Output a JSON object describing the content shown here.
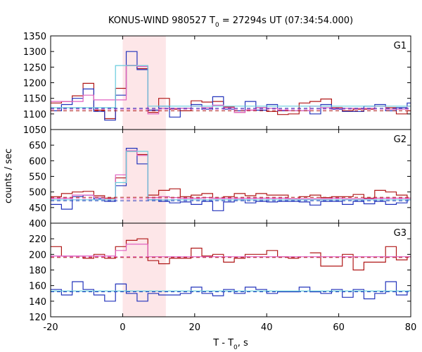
{
  "chart_data": {
    "type": "line",
    "title": "KONUS-WIND 980527 T0 = 27294s UT (07:34:54.000)",
    "title_parts": {
      "pre": "KONUS-WIND 980527 T",
      "sub": "0",
      "post": " = 27294s UT (07:34:54.000)"
    },
    "xlabel_parts": {
      "pre": "T - T",
      "sub": "0",
      "post": ", s"
    },
    "ylabel": "counts / sec",
    "xlim": [
      -20,
      80
    ],
    "xticks": [
      -20,
      0,
      20,
      40,
      60,
      80
    ],
    "grid": false,
    "highlight_interval": [
      0,
      12
    ],
    "colors": {
      "red": "#b01818",
      "blue": "#2233bb",
      "pink": "#e060c0",
      "cyan": "#66ccdd",
      "highlight": "#fde6e8"
    },
    "panels": [
      {
        "label": "G1",
        "ylim": [
          1050,
          1350
        ],
        "yticks": [
          1050,
          1100,
          1150,
          1200,
          1250,
          1300,
          1350
        ],
        "series": [
          {
            "color_key": "red",
            "bin_width": 3,
            "start": -20,
            "end": 81,
            "gap": [
              null,
              null
            ],
            "values": [
              1135,
              1140,
              1158,
              1198,
              1112,
              1085,
              1182,
              1255,
              1245,
              1105,
              1150,
              1115,
              1110,
              1142,
              1138,
              1140,
              1122,
              1105,
              1112,
              1120,
              1108,
              1098,
              1100,
              1135,
              1140,
              1148,
              1120,
              1110,
              1115,
              1115,
              1125,
              1120,
              1100,
              1110
            ]
          },
          {
            "color_key": "blue",
            "bin_width": 3,
            "start": -20,
            "end": 81,
            "gap": [
              null,
              null
            ],
            "values": [
              1110,
              1130,
              1150,
              1180,
              1108,
              1080,
              1160,
              1300,
              1242,
              1112,
              1125,
              1090,
              1118,
              1130,
              1115,
              1155,
              1115,
              1110,
              1140,
              1112,
              1130,
              1110,
              1110,
              1110,
              1100,
              1130,
              1115,
              1108,
              1108,
              1125,
              1130,
              1110,
              1120,
              1135
            ]
          },
          {
            "color_key": "pink",
            "bin_width": 3,
            "start": -20,
            "end": 81,
            "gap": [
              null,
              null
            ],
            "values": [
              1140,
              1140,
              1140,
              1160,
              1145,
              1145,
              1145,
              1256,
              1252,
              1100,
              1118,
              1118,
              1118,
              1125,
              1120,
              1128,
              1120,
              1105,
              1112,
              1120,
              1118,
              1112,
              1110,
              1110,
              1125,
              1120,
              1118,
              1118,
              1118,
              1118,
              1125,
              1115,
              1115,
              1125
            ]
          },
          {
            "color_key": "cyan",
            "bin_width": 3,
            "start": -20,
            "end": 81,
            "gap": [
              null,
              null
            ],
            "values": [
              1120,
              1120,
              1120,
              1120,
              1120,
              1120,
              1255,
              1255,
              1255,
              1125,
              1125,
              1125,
              1125,
              1125,
              1125,
              1125,
              1125,
              1125,
              1125,
              1125,
              1125,
              1125,
              1125,
              1125,
              1125,
              1125,
              1125,
              1125,
              1125,
              1125,
              1125,
              1125,
              1125,
              1125
            ]
          }
        ],
        "fits": [
          {
            "color_key": "red",
            "value": 1110
          },
          {
            "color_key": "blue",
            "value": 1118
          },
          {
            "color_key": "pink",
            "value": 1115
          }
        ]
      },
      {
        "label": "G2",
        "ylim": [
          400,
          700
        ],
        "yticks": [
          400,
          450,
          500,
          550,
          600,
          650
        ],
        "series": [
          {
            "color_key": "red",
            "bin_width": 3,
            "start": -20,
            "end": 81,
            "gap": [
              null,
              null
            ],
            "values": [
              485,
              495,
              500,
              502,
              488,
              480,
              545,
              630,
              620,
              490,
              505,
              510,
              485,
              490,
              495,
              480,
              485,
              495,
              488,
              495,
              490,
              490,
              478,
              485,
              490,
              482,
              485,
              485,
              492,
              480,
              505,
              500,
              490,
              480
            ]
          },
          {
            "color_key": "blue",
            "bin_width": 3,
            "start": -20,
            "end": 81,
            "gap": [
              null,
              null
            ],
            "values": [
              460,
              445,
              485,
              490,
              478,
              470,
              520,
              640,
              590,
              475,
              470,
              465,
              468,
              460,
              470,
              440,
              468,
              475,
              465,
              470,
              468,
              470,
              470,
              468,
              458,
              470,
              470,
              460,
              470,
              462,
              470,
              460,
              465,
              475
            ]
          },
          {
            "color_key": "pink",
            "bin_width": 3,
            "start": -20,
            "end": 81,
            "gap": [
              null,
              null
            ],
            "values": [
              480,
              480,
              490,
              490,
              483,
              475,
              555,
              632,
              617,
              482,
              485,
              482,
              480,
              480,
              482,
              480,
              480,
              480,
              480,
              480,
              480,
              480,
              478,
              478,
              478,
              478,
              480,
              478,
              478,
              478,
              480,
              480,
              480,
              480
            ]
          },
          {
            "color_key": "cyan",
            "bin_width": 3,
            "start": -20,
            "end": 81,
            "gap": [
              null,
              null
            ],
            "values": [
              475,
              475,
              475,
              475,
              475,
              475,
              530,
              630,
              630,
              475,
              475,
              475,
              475,
              475,
              475,
              475,
              475,
              475,
              475,
              475,
              475,
              475,
              475,
              475,
              475,
              475,
              475,
              475,
              475,
              475,
              475,
              475,
              475,
              475
            ]
          }
        ],
        "fits": [
          {
            "color_key": "red",
            "value": 483
          },
          {
            "color_key": "blue",
            "value": 472
          },
          {
            "color_key": "pink",
            "value": 478
          }
        ]
      },
      {
        "label": "G3",
        "ylim": [
          120,
          240
        ],
        "yticks": [
          120,
          140,
          160,
          180,
          200,
          220
        ],
        "series": [
          {
            "color_key": "red",
            "bin_width": 3,
            "start": -20,
            "end": 81,
            "gap": [
              47,
              50
            ],
            "values": [
              210,
              198,
              198,
              195,
              200,
              195,
              210,
              218,
              220,
              192,
              188,
              195,
              195,
              208,
              198,
              200,
              190,
              195,
              200,
              200,
              205,
              197,
              195,
              210,
              202,
              185,
              185,
              200,
              180,
              190,
              190,
              210,
              193,
              197
            ]
          },
          {
            "color_key": "blue",
            "bin_width": 3,
            "start": -20,
            "end": 81,
            "gap": [
              null,
              null
            ],
            "values": [
              155,
              148,
              165,
              155,
              148,
              140,
              162,
              150,
              140,
              150,
              148,
              148,
              150,
              158,
              150,
              147,
              155,
              150,
              158,
              155,
              150,
              152,
              152,
              158,
              152,
              150,
              155,
              145,
              155,
              143,
              150,
              165,
              148,
              153
            ]
          },
          {
            "color_key": "pink",
            "bin_width": 3,
            "start": -20,
            "end": 81,
            "gap": [
              null,
              null
            ],
            "values": [
              198,
              198,
              198,
              198,
              198,
              198,
              205,
              213,
              213,
              197,
              197,
              197,
              197,
              197,
              197,
              197,
              197,
              197,
              197,
              197,
              197,
              197,
              197,
              197,
              197,
              197,
              197,
              197,
              197,
              197,
              197,
              197,
              197,
              197
            ]
          },
          {
            "color_key": "cyan",
            "bin_width": 3,
            "start": -20,
            "end": 81,
            "gap": [
              null,
              null
            ],
            "values": [
              153,
              153,
              153,
              153,
              153,
              153,
              153,
              153,
              153,
              153,
              153,
              153,
              153,
              153,
              153,
              153,
              153,
              153,
              153,
              153,
              153,
              153,
              153,
              153,
              153,
              153,
              153,
              153,
              153,
              153,
              153,
              153,
              153,
              153
            ]
          }
        ],
        "fits": [
          {
            "color_key": "red",
            "value": 196
          },
          {
            "color_key": "blue",
            "value": 152
          },
          {
            "color_key": "pink",
            "value": 197
          }
        ]
      }
    ]
  }
}
